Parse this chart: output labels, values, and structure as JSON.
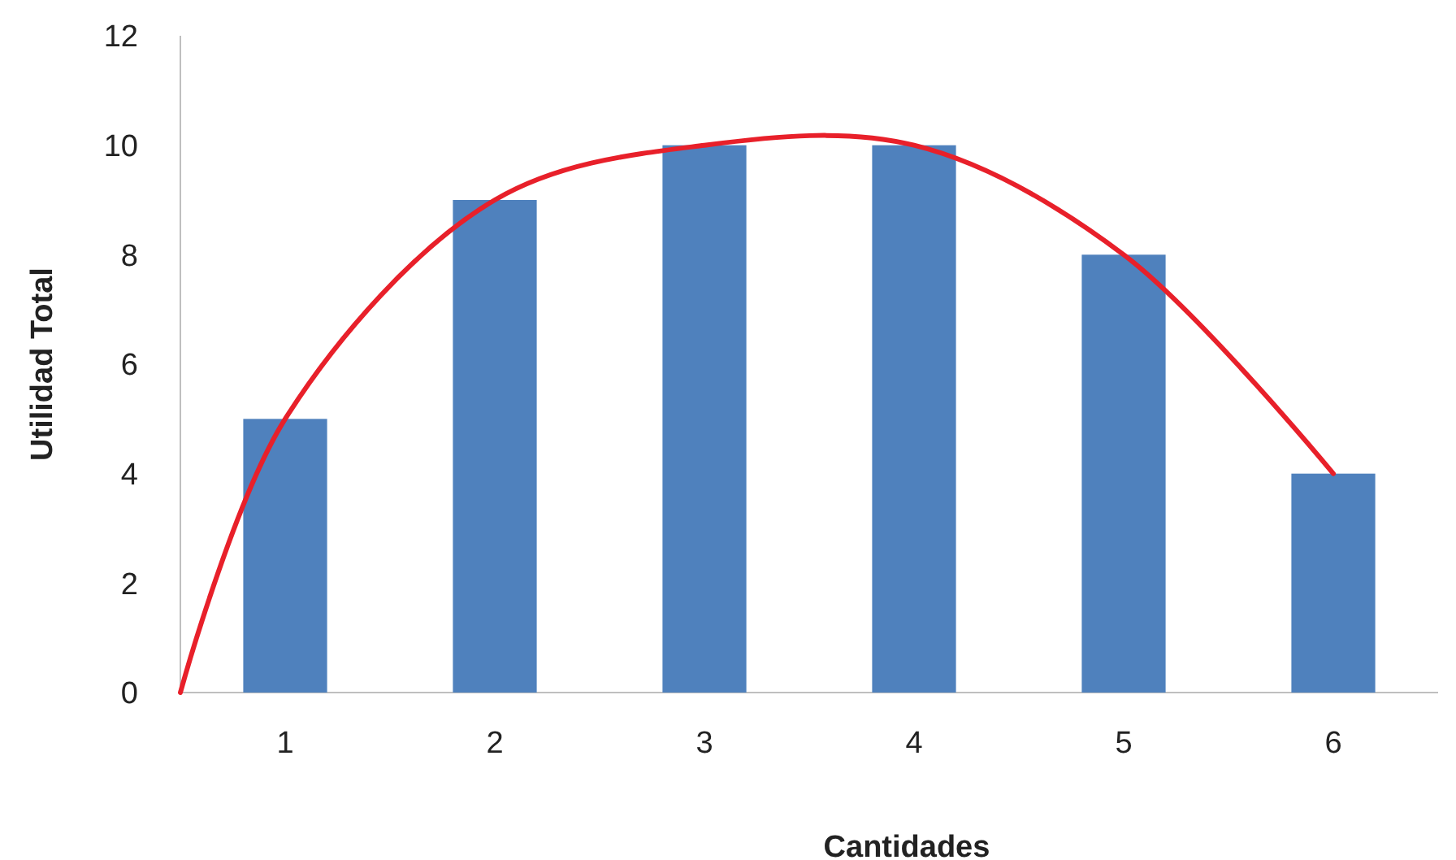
{
  "chart_data": {
    "type": "bar",
    "xlabel": "Cantidades",
    "ylabel": "Utilidad Total",
    "x": [
      1,
      2,
      3,
      4,
      5,
      6
    ],
    "xlim": [
      0.5,
      6.5
    ],
    "xticks": [
      1,
      2,
      3,
      4,
      5,
      6
    ],
    "ylim": [
      0,
      12
    ],
    "yticks": [
      0,
      2,
      4,
      6,
      8,
      10,
      12
    ],
    "grid": false,
    "series": [
      {
        "color": "#4f81bd",
        "values": [
          5,
          9,
          10,
          10,
          8,
          4
        ]
      },
      {
        "type": "line",
        "color": "#e8202a",
        "x": [
          0.5,
          1,
          2,
          3,
          4,
          5,
          6
        ],
        "values": [
          0,
          5,
          9,
          10,
          10,
          8,
          4
        ],
        "marker": "none",
        "line_style": "solid"
      }
    ]
  }
}
